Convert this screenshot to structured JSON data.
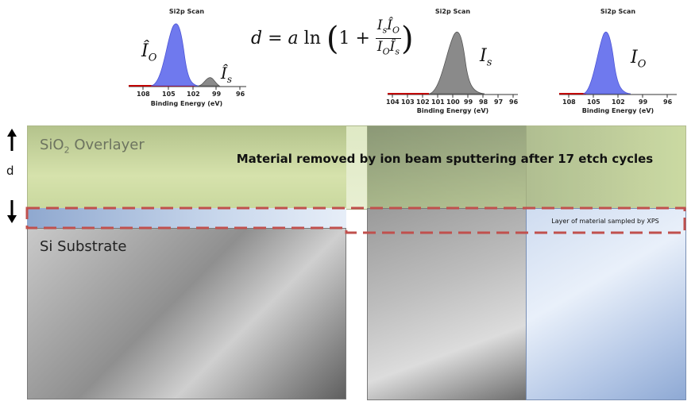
{
  "colors": {
    "oxide_fill": "#c9d89e",
    "substrate_dark": "#6e6e6e",
    "substrate_light": "#d9d9d9",
    "sampled_blue": "#b9cbe6",
    "oxide_peak": "#6f79ee",
    "substrate_peak": "#8a8a8a",
    "dashed_line": "#c0504d"
  },
  "equation": {
    "lhs": "d",
    "eq": "=",
    "coef": "a",
    "fn": "ln",
    "one_plus": "1 +",
    "num_a": "I",
    "num_a_sub": "s",
    "num_b": "Î",
    "num_b_sub": "O",
    "den_a": "I",
    "den_a_sub": "O",
    "den_b": "Î",
    "den_b_sub": "s"
  },
  "plots": [
    {
      "title": "Si2p Scan",
      "xlabel": "Binding Energy (eV)",
      "ticks": [
        "108",
        "105",
        "102",
        "99",
        "96"
      ],
      "labels": [
        {
          "sym": "Î",
          "sub": "O"
        },
        {
          "sym": "Î",
          "sub": "s"
        }
      ]
    },
    {
      "title": "Si2p Scan",
      "xlabel": "Binding Energy (eV)",
      "ticks": [
        "104",
        "103",
        "102",
        "101",
        "100",
        "99",
        "98",
        "97",
        "96"
      ],
      "labels": [
        {
          "sym": "I",
          "sub": "s"
        }
      ]
    },
    {
      "title": "Si2p Scan",
      "xlabel": "Binding Energy (eV)",
      "ticks": [
        "108",
        "105",
        "102",
        "99",
        "96"
      ],
      "labels": [
        {
          "sym": "I",
          "sub": "O"
        }
      ]
    }
  ],
  "diagram": {
    "oxide_label_main": "SiO",
    "oxide_label_sub": "2",
    "oxide_label_rest": " Overlayer",
    "removed_caption": "Material removed by ion beam sputtering after 17 etch cycles",
    "sampled_caption": "Layer of material sampled by XPS",
    "substrate_label": "Si Substrate",
    "thickness_label": "d"
  }
}
